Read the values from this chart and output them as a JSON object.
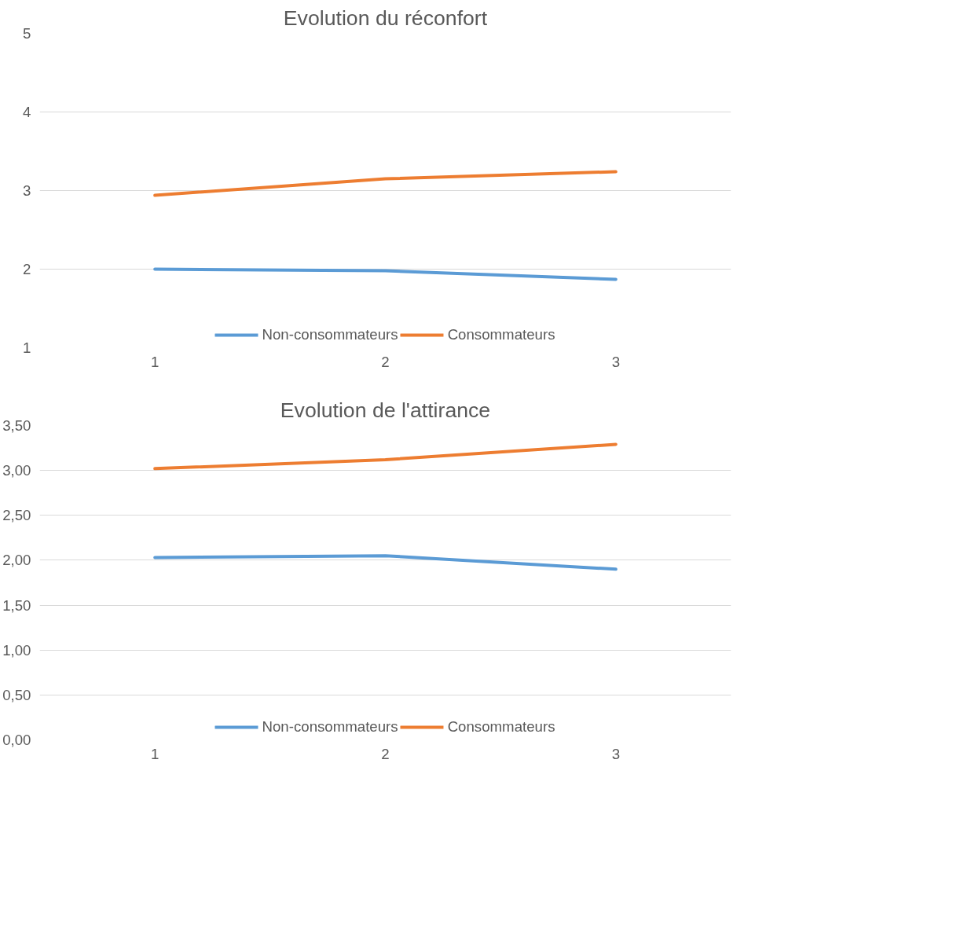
{
  "chart_data": [
    {
      "type": "line",
      "title": "Evolution du réconfort",
      "categories": [
        "1",
        "2",
        "3"
      ],
      "ylim": [
        1,
        5
      ],
      "yticks": [
        1,
        2,
        3,
        4,
        5
      ],
      "grid": "y",
      "legend": "bottom",
      "series": [
        {
          "name": "Non-consommateurs",
          "color": "#5b9bd5",
          "values": [
            2.0,
            1.98,
            1.87
          ]
        },
        {
          "name": "Consommateurs",
          "color": "#ed7d31",
          "values": [
            2.94,
            3.15,
            3.24
          ]
        }
      ]
    },
    {
      "type": "line",
      "title": "Evolution de l'attirance",
      "categories": [
        "1",
        "2",
        "3"
      ],
      "ylim": [
        0,
        3.5
      ],
      "yticks": [
        {
          "value": 0,
          "label": "0,00"
        },
        {
          "value": 0.5,
          "label": "0,50"
        },
        {
          "value": 1,
          "label": "1,00"
        },
        {
          "value": 1.5,
          "label": "1,50"
        },
        {
          "value": 2,
          "label": "2,00"
        },
        {
          "value": 2.5,
          "label": "2,50"
        },
        {
          "value": 3,
          "label": "3,00"
        },
        {
          "value": 3.5,
          "label": "3,50"
        }
      ],
      "grid": "y",
      "legend": "bottom",
      "series": [
        {
          "name": "Non-consommateurs",
          "color": "#5b9bd5",
          "values": [
            2.03,
            2.05,
            1.9
          ]
        },
        {
          "name": "Consommateurs",
          "color": "#ed7d31",
          "values": [
            3.02,
            3.12,
            3.29
          ]
        }
      ]
    }
  ]
}
